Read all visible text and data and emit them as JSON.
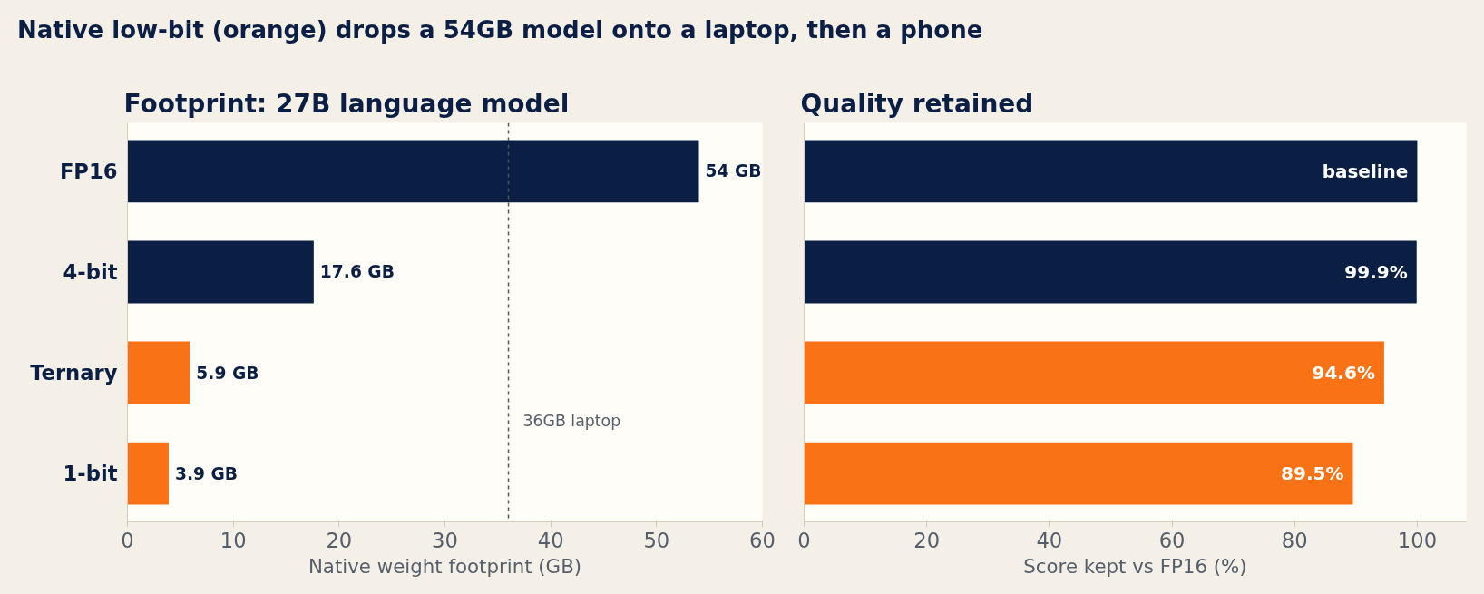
{
  "chart_data": [
    {
      "type": "bar",
      "orientation": "horizontal",
      "title": "Native low-bit (orange) drops a 54GB model onto a laptop, then a phone",
      "subtitle": "Footprint: 27B language model",
      "xlabel": "Native weight footprint (GB)",
      "categories": [
        "FP16",
        "4-bit",
        "Ternary",
        "1-bit"
      ],
      "values": [
        54,
        17.6,
        5.9,
        3.9
      ],
      "colors": [
        "#0b1f44",
        "#0b1f44",
        "#f97316",
        "#f97316"
      ],
      "value_labels": [
        "54 GB",
        "17.6 GB",
        "5.9 GB",
        "3.9 GB"
      ],
      "xlim": [
        0,
        60
      ],
      "xticks": [
        0,
        10,
        20,
        30,
        40,
        50,
        60
      ],
      "ref_lines": [
        {
          "axis": "x",
          "value": 36,
          "label": "36GB laptop",
          "color": "#555555",
          "line_style": "dashed"
        }
      ],
      "grid": false
    },
    {
      "type": "bar",
      "orientation": "horizontal",
      "subtitle": "Quality retained",
      "xlabel": "Score kept vs FP16 (%)",
      "values": [
        100,
        99.9,
        94.6,
        89.5
      ],
      "colors": [
        "#0b1f44",
        "#0b1f44",
        "#f97316",
        "#f97316"
      ],
      "value_labels": [
        "baseline",
        "99.9%",
        "94.6%",
        "89.5%"
      ],
      "xlim": [
        0,
        108
      ],
      "xticks": [
        0,
        20,
        40,
        60,
        80,
        100
      ],
      "grid": false
    }
  ]
}
